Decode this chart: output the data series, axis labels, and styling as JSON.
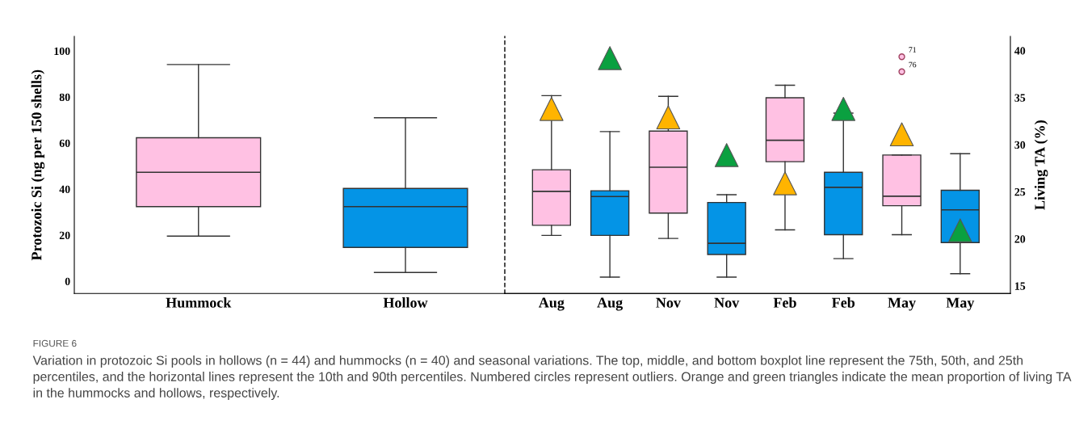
{
  "chart_data": [
    {
      "type": "box",
      "ylabel": "Protozoic Si (ng per 150 shells)",
      "categories": [
        "Hummock",
        "Hollow"
      ],
      "colors": [
        "#ffc1e3",
        "#0494e6"
      ],
      "boxes": [
        {
          "low": 19.6,
          "q1": 32.4,
          "median": 47.3,
          "q3": 62.3,
          "high": 94.1
        },
        {
          "low": 3.8,
          "q1": 14.7,
          "median": 32.4,
          "q3": 40.3,
          "high": 71.0
        }
      ],
      "ylim": [
        -5.3,
        106.3
      ],
      "yticks": [
        0,
        20,
        40,
        60,
        80,
        100
      ],
      "grid": false,
      "annotations": [
        "FIGURE 6",
        "Variation in protozoic Si pools in hollows (n = 44) and hummocks (n = 40) and seasonal variations. The top, middle, and bottom boxplot line represent the 75th, 50th, and 25th percentiles, and the horizontal lines represent the 10th and 90th percentiles. Numbered circles represent outliers. Orange and green triangles indicate the mean proportion of living TA in the hummocks and hollows, respectively."
      ]
    },
    {
      "type": "box",
      "y2label": "Living TA (%)",
      "categories": [
        "Aug",
        "Aug",
        "Nov",
        "Nov",
        "Feb",
        "Feb",
        "May",
        "May"
      ],
      "colors": [
        "#ffc1e3",
        "#0494e6",
        "#ffc1e3",
        "#0494e6",
        "#ffc1e3",
        "#0494e6",
        "#ffc1e3",
        "#0494e6"
      ],
      "boxes": [
        {
          "low": 19.9,
          "q1": 24.3,
          "median": 39.0,
          "q3": 48.4,
          "high": 80.6
        },
        {
          "low": 1.8,
          "q1": 19.9,
          "median": 36.8,
          "q3": 39.3,
          "high": 65.0
        },
        {
          "low": 18.6,
          "q1": 29.6,
          "median": 49.5,
          "q3": 65.2,
          "high": 80.3
        },
        {
          "low": 1.8,
          "q1": 11.6,
          "median": 16.5,
          "q3": 34.2,
          "high": 37.6
        },
        {
          "low": 22.3,
          "q1": 51.9,
          "median": 61.2,
          "q3": 79.7,
          "high": 85.1
        },
        {
          "low": 9.8,
          "q1": 20.2,
          "median": 40.8,
          "q3": 47.3,
          "high": 73.0
        },
        {
          "low": 20.2,
          "q1": 32.8,
          "median": 36.9,
          "q3": 54.8,
          "high": 54.8,
          "outliers": [
            97.5,
            91.0
          ]
        },
        {
          "low": 3.3,
          "q1": 16.8,
          "median": 31.0,
          "q3": 39.5,
          "high": 55.4
        }
      ],
      "series": [
        {
          "type": "scatter",
          "axis": "y2",
          "color": "#ffb400",
          "marker": "triangle",
          "values": [
            33.8,
            null,
            32.9,
            null,
            25.9,
            null,
            31.1,
            null
          ]
        },
        {
          "type": "scatter",
          "axis": "y2",
          "color": "#0aa040",
          "marker": "triangle",
          "values": [
            null,
            39.2,
            null,
            28.9,
            null,
            33.8,
            null,
            20.9
          ]
        }
      ],
      "ylim": [
        -5.3,
        106.3
      ],
      "y2lim": [
        14.2,
        41.5
      ],
      "y2ticks": [
        15,
        20,
        25,
        30,
        35,
        40
      ],
      "grid": false,
      "annotations": [
        "71",
        "76"
      ]
    }
  ]
}
